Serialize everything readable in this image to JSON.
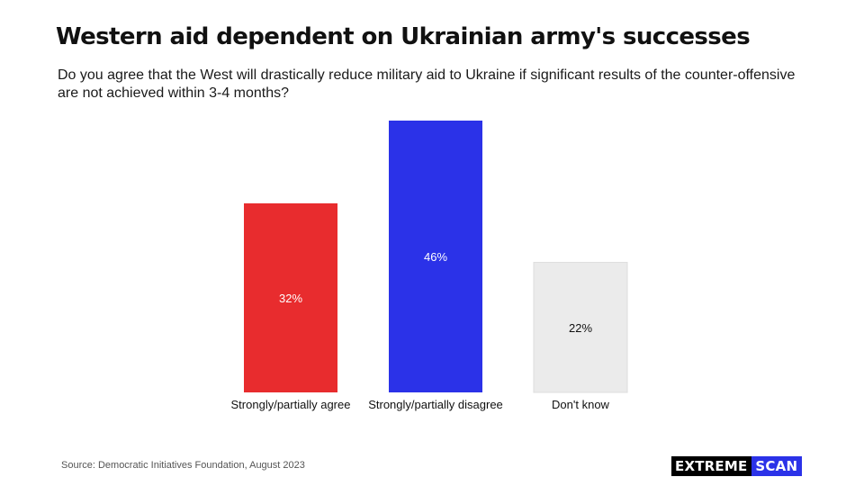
{
  "header": {
    "title": "Western aid dependent on Ukrainian army's successes",
    "subtitle": "Do you agree that the West will drastically reduce military aid to Ukraine if significant results of the counter-offensive are not achieved within 3-4 months?"
  },
  "chart_data": {
    "type": "bar",
    "categories": [
      "Strongly/partially agree",
      "Strongly/partially disagree",
      "Don't know"
    ],
    "values": [
      32,
      46,
      22
    ],
    "value_labels": [
      "32%",
      "46%",
      "22%"
    ],
    "colors": [
      "#e82c2e",
      "#2b32e8",
      "#ebebeb"
    ],
    "label_colors": [
      "#ffffff",
      "#ffffff",
      "#111111"
    ],
    "title": "Western aid dependent on Ukrainian army's successes",
    "xlabel": "",
    "ylabel": "",
    "ylim": [
      0,
      46
    ],
    "grid": false,
    "legend": "none"
  },
  "footer": {
    "source": "Source: Democratic Initiatives Foundation, August 2023",
    "logo_part1": "EXTREME",
    "logo_part2": "SCAN"
  }
}
